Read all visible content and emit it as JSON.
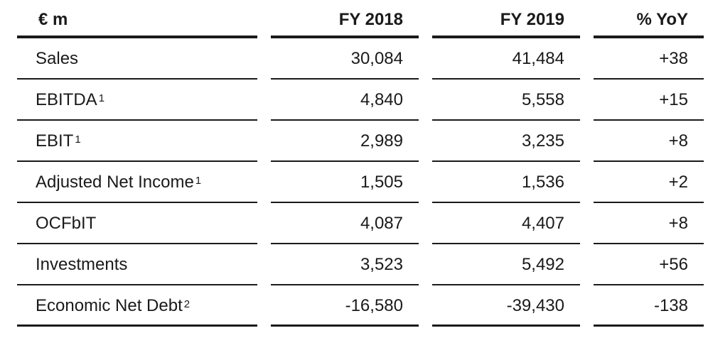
{
  "table": {
    "headers": [
      "€ m",
      "FY 2018",
      "FY 2019",
      "% YoY"
    ],
    "rows": [
      {
        "label": "Sales",
        "note": "",
        "fy2018": "30,084",
        "fy2019": "41,484",
        "yoy": "+38"
      },
      {
        "label": "EBITDA",
        "note": "1",
        "fy2018": "4,840",
        "fy2019": "5,558",
        "yoy": "+15"
      },
      {
        "label": "EBIT",
        "note": "1",
        "fy2018": "2,989",
        "fy2019": "3,235",
        "yoy": "+8"
      },
      {
        "label": "Adjusted Net Income",
        "note": "1",
        "fy2018": "1,505",
        "fy2019": "1,536",
        "yoy": "+2"
      },
      {
        "label": "OCFbIT",
        "note": "",
        "fy2018": "4,087",
        "fy2019": "4,407",
        "yoy": "+8"
      },
      {
        "label": "Investments",
        "note": "",
        "fy2018": "3,523",
        "fy2019": "5,492",
        "yoy": "+56"
      },
      {
        "label": "Economic Net Debt",
        "note": "2",
        "fy2018": "-16,580",
        "fy2019": "-39,430",
        "yoy": "-138"
      }
    ]
  }
}
